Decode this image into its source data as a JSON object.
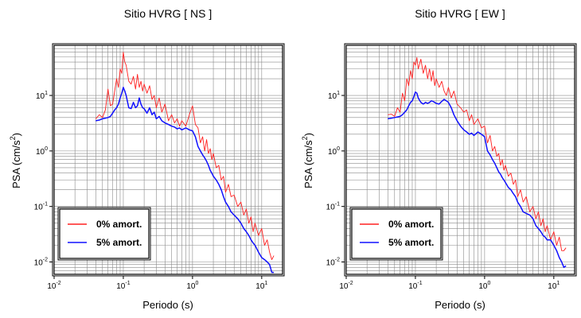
{
  "figure": {
    "ylabel_main": "PSA (cm/s",
    "ylabel_sup": "2",
    "ylabel_close": ")",
    "xlabel": "Periodo (s)"
  },
  "chart_data": [
    {
      "type": "line",
      "title": "Sitio HVRG [ NS ]",
      "xlabel": "Periodo (s)",
      "ylabel": "PSA (cm/s2)",
      "xscale": "log",
      "yscale": "log",
      "xlim": [
        0.01,
        20
      ],
      "ylim": [
        0.006,
        80
      ],
      "grid": true,
      "legend": "bottom-left",
      "xticks": [
        {
          "base": "10",
          "exp": "-2"
        },
        {
          "base": "10",
          "exp": "-1"
        },
        {
          "base": "10",
          "exp": "0"
        },
        {
          "base": "10",
          "exp": "1"
        }
      ],
      "yticks": [
        {
          "base": "10",
          "exp": "-2"
        },
        {
          "base": "10",
          "exp": "-1"
        },
        {
          "base": "10",
          "exp": "0"
        },
        {
          "base": "10",
          "exp": "1"
        }
      ],
      "series": [
        {
          "name": "0% amort.",
          "color": "#ff2020",
          "x": [
            0.04,
            0.045,
            0.05,
            0.055,
            0.06,
            0.065,
            0.07,
            0.075,
            0.08,
            0.085,
            0.09,
            0.095,
            0.1,
            0.105,
            0.11,
            0.12,
            0.13,
            0.14,
            0.15,
            0.16,
            0.17,
            0.18,
            0.19,
            0.2,
            0.22,
            0.24,
            0.26,
            0.28,
            0.3,
            0.33,
            0.36,
            0.4,
            0.45,
            0.5,
            0.55,
            0.6,
            0.65,
            0.7,
            0.8,
            0.9,
            1.0,
            1.1,
            1.2,
            1.3,
            1.4,
            1.5,
            1.6,
            1.7,
            1.8,
            1.9,
            2.0,
            2.2,
            2.4,
            2.6,
            2.8,
            3.0,
            3.3,
            3.6,
            4.0,
            4.5,
            5.0,
            5.5,
            6.0,
            6.5,
            7.0,
            7.5,
            8.0,
            9.0,
            10.0,
            11.0,
            12.0,
            13.0,
            14.0,
            15.0
          ],
          "y": [
            3.8,
            4.5,
            4.0,
            5.5,
            13.0,
            6.5,
            7.0,
            12.0,
            20.0,
            14.0,
            30.0,
            25.0,
            60.0,
            40.0,
            35.0,
            18.0,
            16.0,
            22.0,
            13.0,
            24.0,
            14.0,
            18.0,
            12.0,
            16.0,
            11.0,
            15.0,
            8.5,
            10.0,
            6.0,
            9.0,
            5.0,
            7.0,
            3.5,
            4.5,
            3.2,
            3.8,
            2.8,
            3.5,
            2.8,
            4.5,
            6.5,
            3.0,
            2.6,
            1.4,
            1.8,
            1.0,
            1.6,
            0.9,
            1.1,
            0.7,
            0.9,
            0.5,
            0.55,
            0.3,
            0.35,
            0.18,
            0.25,
            0.15,
            0.16,
            0.1,
            0.12,
            0.07,
            0.09,
            0.05,
            0.065,
            0.035,
            0.05,
            0.03,
            0.04,
            0.02,
            0.025,
            0.015,
            0.011,
            0.013
          ]
        },
        {
          "name": "5% amort.",
          "color": "#1010ff",
          "x": [
            0.04,
            0.045,
            0.05,
            0.055,
            0.06,
            0.065,
            0.07,
            0.075,
            0.08,
            0.085,
            0.09,
            0.095,
            0.1,
            0.105,
            0.11,
            0.12,
            0.13,
            0.14,
            0.15,
            0.16,
            0.17,
            0.18,
            0.19,
            0.2,
            0.22,
            0.24,
            0.26,
            0.28,
            0.3,
            0.33,
            0.36,
            0.4,
            0.45,
            0.5,
            0.55,
            0.6,
            0.65,
            0.7,
            0.8,
            0.9,
            1.0,
            1.1,
            1.2,
            1.3,
            1.4,
            1.5,
            1.6,
            1.7,
            1.8,
            1.9,
            2.0,
            2.2,
            2.4,
            2.6,
            2.8,
            3.0,
            3.3,
            3.6,
            4.0,
            4.5,
            5.0,
            5.5,
            6.0,
            6.5,
            7.0,
            7.5,
            8.0,
            9.0,
            10.0,
            11.0,
            12.0,
            13.0,
            14.0,
            15.0
          ],
          "y": [
            3.5,
            3.6,
            3.8,
            3.9,
            4.0,
            4.2,
            4.8,
            5.5,
            6.0,
            7.0,
            9.0,
            11.0,
            14.0,
            12.0,
            10.0,
            6.0,
            5.8,
            7.5,
            6.0,
            6.5,
            9.0,
            7.0,
            6.0,
            5.8,
            4.8,
            6.0,
            4.5,
            5.0,
            3.8,
            4.2,
            3.5,
            3.2,
            3.0,
            2.8,
            2.7,
            2.5,
            2.6,
            2.4,
            2.6,
            2.4,
            2.3,
            1.8,
            1.2,
            1.0,
            0.85,
            0.75,
            0.65,
            0.55,
            0.45,
            0.4,
            0.35,
            0.3,
            0.25,
            0.2,
            0.15,
            0.12,
            0.1,
            0.08,
            0.07,
            0.06,
            0.05,
            0.04,
            0.035,
            0.03,
            0.025,
            0.022,
            0.02,
            0.015,
            0.012,
            0.011,
            0.01,
            0.009,
            0.0065,
            0.0065
          ]
        }
      ]
    },
    {
      "type": "line",
      "title": "Sitio HVRG [ EW ]",
      "xlabel": "Periodo (s)",
      "ylabel": "PSA (cm/s2)",
      "xscale": "log",
      "yscale": "log",
      "xlim": [
        0.01,
        20
      ],
      "ylim": [
        0.006,
        80
      ],
      "grid": true,
      "legend": "bottom-left",
      "xticks": [
        {
          "base": "10",
          "exp": "-2"
        },
        {
          "base": "10",
          "exp": "-1"
        },
        {
          "base": "10",
          "exp": "0"
        },
        {
          "base": "10",
          "exp": "1"
        }
      ],
      "yticks": [
        {
          "base": "10",
          "exp": "-2"
        },
        {
          "base": "10",
          "exp": "-1"
        },
        {
          "base": "10",
          "exp": "0"
        },
        {
          "base": "10",
          "exp": "1"
        }
      ],
      "series": [
        {
          "name": "0% amort.",
          "color": "#ff2020",
          "x": [
            0.04,
            0.045,
            0.05,
            0.055,
            0.06,
            0.065,
            0.07,
            0.075,
            0.08,
            0.085,
            0.09,
            0.095,
            0.1,
            0.105,
            0.11,
            0.12,
            0.13,
            0.14,
            0.15,
            0.16,
            0.17,
            0.18,
            0.19,
            0.2,
            0.22,
            0.24,
            0.26,
            0.28,
            0.3,
            0.33,
            0.36,
            0.4,
            0.45,
            0.5,
            0.55,
            0.6,
            0.65,
            0.7,
            0.8,
            0.9,
            1.0,
            1.1,
            1.2,
            1.3,
            1.4,
            1.5,
            1.6,
            1.7,
            1.8,
            1.9,
            2.0,
            2.2,
            2.4,
            2.6,
            2.8,
            3.0,
            3.3,
            3.6,
            4.0,
            4.5,
            5.0,
            5.5,
            6.0,
            6.5,
            7.0,
            7.5,
            8.0,
            9.0,
            10.0,
            11.0,
            12.0,
            13.0,
            14.0,
            15.0
          ],
          "y": [
            4.5,
            4.6,
            4.2,
            6.0,
            5.0,
            11.0,
            8.0,
            20.0,
            15.0,
            28.0,
            20.0,
            40.0,
            35.0,
            48.0,
            30.0,
            45.0,
            25.0,
            35.0,
            20.0,
            30.0,
            18.0,
            28.0,
            15.0,
            20.0,
            14.0,
            18.0,
            12.0,
            10.0,
            14.0,
            9.0,
            12.0,
            7.0,
            6.0,
            5.0,
            5.5,
            3.5,
            4.5,
            3.0,
            3.8,
            2.6,
            2.8,
            1.4,
            1.9,
            1.0,
            1.2,
            0.8,
            0.9,
            0.55,
            0.7,
            0.45,
            0.55,
            0.35,
            0.4,
            0.25,
            0.3,
            0.15,
            0.2,
            0.12,
            0.15,
            0.08,
            0.1,
            0.06,
            0.08,
            0.045,
            0.06,
            0.035,
            0.045,
            0.025,
            0.035,
            0.02,
            0.028,
            0.016,
            0.016,
            0.018
          ]
        },
        {
          "name": "5% amort.",
          "color": "#1010ff",
          "x": [
            0.04,
            0.045,
            0.05,
            0.055,
            0.06,
            0.065,
            0.07,
            0.075,
            0.08,
            0.085,
            0.09,
            0.095,
            0.1,
            0.105,
            0.11,
            0.12,
            0.13,
            0.14,
            0.15,
            0.16,
            0.17,
            0.18,
            0.19,
            0.2,
            0.22,
            0.24,
            0.26,
            0.28,
            0.3,
            0.33,
            0.36,
            0.4,
            0.45,
            0.5,
            0.55,
            0.6,
            0.65,
            0.7,
            0.8,
            0.9,
            1.0,
            1.1,
            1.2,
            1.3,
            1.4,
            1.5,
            1.6,
            1.7,
            1.8,
            1.9,
            2.0,
            2.2,
            2.4,
            2.6,
            2.8,
            3.0,
            3.3,
            3.6,
            4.0,
            4.5,
            5.0,
            5.5,
            6.0,
            6.5,
            7.0,
            7.5,
            8.0,
            9.0,
            10.0,
            11.0,
            12.0,
            13.0,
            14.0,
            15.0
          ],
          "y": [
            3.8,
            3.9,
            4.0,
            4.1,
            4.2,
            4.5,
            5.0,
            5.5,
            6.5,
            7.5,
            8.0,
            9.5,
            11.5,
            11.0,
            9.0,
            7.5,
            7.0,
            7.5,
            7.2,
            7.5,
            8.0,
            7.8,
            7.5,
            7.2,
            7.0,
            7.8,
            8.5,
            8.0,
            7.5,
            6.0,
            4.5,
            3.5,
            2.8,
            2.4,
            2.2,
            2.0,
            2.1,
            1.9,
            2.2,
            2.0,
            1.8,
            1.0,
            0.85,
            0.7,
            0.6,
            0.5,
            0.42,
            0.38,
            0.33,
            0.3,
            0.27,
            0.22,
            0.2,
            0.17,
            0.15,
            0.12,
            0.1,
            0.08,
            0.075,
            0.07,
            0.06,
            0.045,
            0.04,
            0.035,
            0.03,
            0.028,
            0.025,
            0.025,
            0.02,
            0.016,
            0.012,
            0.01,
            0.008,
            0.0085
          ]
        }
      ]
    }
  ]
}
